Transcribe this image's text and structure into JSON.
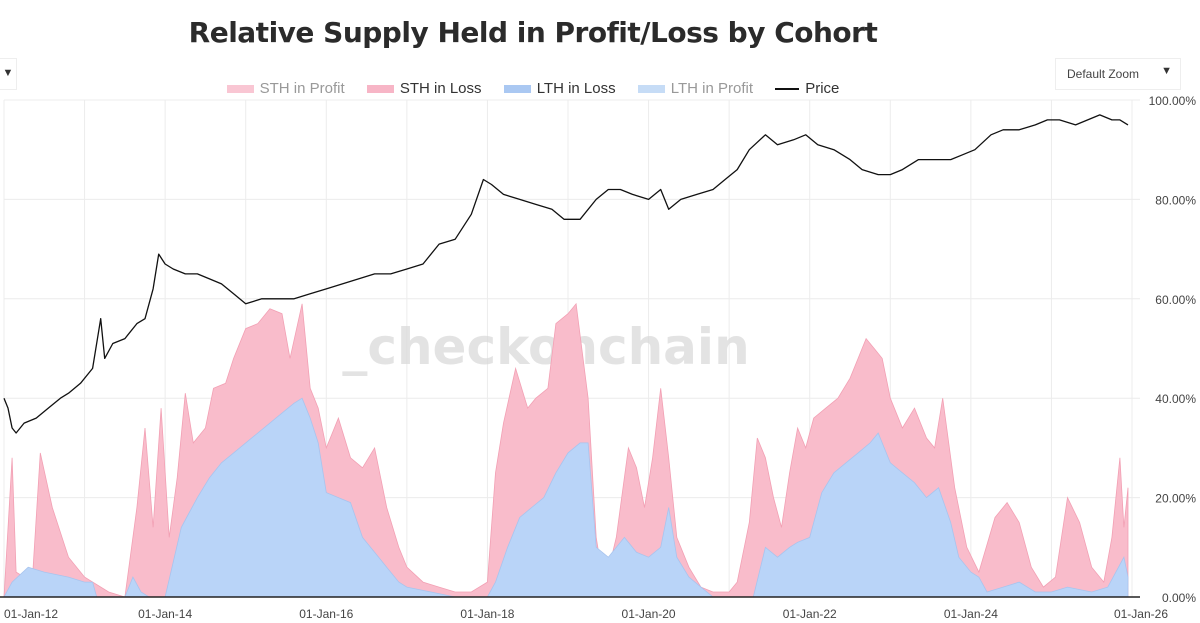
{
  "title": "Relative Supply Held in Profit/Loss by Cohort",
  "controls": {
    "left_dropdown_icon": "▼",
    "zoom_label": "Default Zoom",
    "zoom_icon": "▼"
  },
  "watermark": "_checkonchain",
  "legend": [
    {
      "label": "STH in Profit",
      "color": "#f9c6d3",
      "text_color": "#999999"
    },
    {
      "label": "STH in Loss",
      "color": "#f7b5c6",
      "text_color": "#333333"
    },
    {
      "label": "LTH in Loss",
      "color": "#aac8f2",
      "text_color": "#333333"
    },
    {
      "label": "LTH in Profit",
      "color": "#c6dcf6",
      "text_color": "#999999"
    },
    {
      "label": "Price",
      "color": "#111111",
      "text_color": "#333333"
    }
  ],
  "colors": {
    "sth_loss": "#f9bccb",
    "sth_loss_edge": "#f2a0b4",
    "lth_loss": "#b9d4f8",
    "lth_loss_edge": "#a8c4ee",
    "price": "#111111",
    "grid": "#ececec",
    "axis": "#222222"
  },
  "chart_data": {
    "type": "area",
    "title": "Relative Supply Held in Profit/Loss by Cohort",
    "ylim": [
      0,
      100
    ],
    "y_unit": "%",
    "y_ticks": [
      "0.00%",
      "20.00%",
      "40.00%",
      "60.00%",
      "80.00%",
      "100.00%"
    ],
    "x_ticks": [
      "01-Jan-12",
      "01-Jan-14",
      "01-Jan-16",
      "01-Jan-18",
      "01-Jan-20",
      "01-Jan-22",
      "01-Jan-24",
      "01-Jan-26"
    ],
    "xlim": [
      2012.0,
      2026.0
    ],
    "grid": true,
    "legend_position": "top",
    "series": [
      {
        "name": "STH in Loss",
        "kind": "area",
        "stack": "total",
        "points": [
          [
            2012.0,
            0
          ],
          [
            2012.1,
            28
          ],
          [
            2012.15,
            5
          ],
          [
            2012.35,
            3
          ],
          [
            2012.45,
            29
          ],
          [
            2012.6,
            18
          ],
          [
            2012.8,
            8
          ],
          [
            2013.0,
            4
          ],
          [
            2013.3,
            1
          ],
          [
            2013.5,
            0
          ],
          [
            2013.65,
            18
          ],
          [
            2013.75,
            34
          ],
          [
            2013.85,
            14
          ],
          [
            2013.95,
            38
          ],
          [
            2014.05,
            12
          ],
          [
            2014.15,
            24
          ],
          [
            2014.25,
            41
          ],
          [
            2014.35,
            31
          ],
          [
            2014.5,
            34
          ],
          [
            2014.6,
            42
          ],
          [
            2014.75,
            43
          ],
          [
            2014.85,
            48
          ],
          [
            2015.0,
            54
          ],
          [
            2015.15,
            55
          ],
          [
            2015.3,
            58
          ],
          [
            2015.45,
            57
          ],
          [
            2015.55,
            48
          ],
          [
            2015.7,
            59
          ],
          [
            2015.8,
            42
          ],
          [
            2015.9,
            38
          ],
          [
            2016.0,
            30
          ],
          [
            2016.15,
            36
          ],
          [
            2016.3,
            28
          ],
          [
            2016.45,
            26
          ],
          [
            2016.6,
            30
          ],
          [
            2016.75,
            18
          ],
          [
            2016.9,
            10
          ],
          [
            2017.0,
            6
          ],
          [
            2017.2,
            3
          ],
          [
            2017.4,
            2
          ],
          [
            2017.6,
            1
          ],
          [
            2017.8,
            1
          ],
          [
            2018.0,
            3
          ],
          [
            2018.1,
            25
          ],
          [
            2018.2,
            35
          ],
          [
            2018.35,
            46
          ],
          [
            2018.5,
            38
          ],
          [
            2018.6,
            40
          ],
          [
            2018.75,
            42
          ],
          [
            2018.85,
            55
          ],
          [
            2019.0,
            57
          ],
          [
            2019.1,
            59
          ],
          [
            2019.25,
            40
          ],
          [
            2019.35,
            12
          ],
          [
            2019.45,
            2
          ],
          [
            2019.6,
            12
          ],
          [
            2019.75,
            30
          ],
          [
            2019.85,
            26
          ],
          [
            2019.95,
            18
          ],
          [
            2020.05,
            28
          ],
          [
            2020.15,
            42
          ],
          [
            2020.25,
            28
          ],
          [
            2020.35,
            12
          ],
          [
            2020.5,
            6
          ],
          [
            2020.65,
            2
          ],
          [
            2020.8,
            1
          ],
          [
            2021.0,
            1
          ],
          [
            2021.1,
            3
          ],
          [
            2021.25,
            15
          ],
          [
            2021.35,
            32
          ],
          [
            2021.45,
            28
          ],
          [
            2021.55,
            20
          ],
          [
            2021.65,
            14
          ],
          [
            2021.75,
            25
          ],
          [
            2021.85,
            34
          ],
          [
            2021.95,
            30
          ],
          [
            2022.05,
            36
          ],
          [
            2022.2,
            38
          ],
          [
            2022.35,
            40
          ],
          [
            2022.5,
            44
          ],
          [
            2022.6,
            48
          ],
          [
            2022.7,
            52
          ],
          [
            2022.8,
            50
          ],
          [
            2022.9,
            48
          ],
          [
            2023.0,
            40
          ],
          [
            2023.15,
            34
          ],
          [
            2023.3,
            38
          ],
          [
            2023.45,
            32
          ],
          [
            2023.55,
            30
          ],
          [
            2023.65,
            40
          ],
          [
            2023.8,
            22
          ],
          [
            2023.95,
            10
          ],
          [
            2024.1,
            5
          ],
          [
            2024.3,
            16
          ],
          [
            2024.45,
            19
          ],
          [
            2024.6,
            15
          ],
          [
            2024.75,
            6
          ],
          [
            2024.9,
            2
          ],
          [
            2025.05,
            4
          ],
          [
            2025.2,
            20
          ],
          [
            2025.35,
            15
          ],
          [
            2025.5,
            6
          ],
          [
            2025.65,
            3
          ],
          [
            2025.75,
            12
          ],
          [
            2025.85,
            28
          ],
          [
            2025.9,
            14
          ],
          [
            2025.95,
            22
          ]
        ]
      },
      {
        "name": "LTH in Loss",
        "kind": "area",
        "stack": "base",
        "points": [
          [
            2012.0,
            0
          ],
          [
            2012.1,
            3
          ],
          [
            2012.3,
            6
          ],
          [
            2012.5,
            5
          ],
          [
            2012.8,
            4
          ],
          [
            2013.0,
            3
          ],
          [
            2013.1,
            3
          ],
          [
            2013.15,
            0
          ],
          [
            2013.3,
            0
          ],
          [
            2013.5,
            0
          ],
          [
            2013.6,
            4
          ],
          [
            2013.7,
            1
          ],
          [
            2013.8,
            0
          ],
          [
            2014.0,
            0
          ],
          [
            2014.2,
            14
          ],
          [
            2014.3,
            17
          ],
          [
            2014.4,
            20
          ],
          [
            2014.55,
            24
          ],
          [
            2014.7,
            27
          ],
          [
            2014.85,
            29
          ],
          [
            2015.0,
            31
          ],
          [
            2015.15,
            33
          ],
          [
            2015.3,
            35
          ],
          [
            2015.45,
            37
          ],
          [
            2015.6,
            39
          ],
          [
            2015.7,
            40
          ],
          [
            2015.8,
            36
          ],
          [
            2015.9,
            31
          ],
          [
            2016.0,
            21
          ],
          [
            2016.15,
            20
          ],
          [
            2016.3,
            19
          ],
          [
            2016.45,
            12
          ],
          [
            2016.6,
            9
          ],
          [
            2016.75,
            6
          ],
          [
            2016.9,
            3
          ],
          [
            2017.0,
            2
          ],
          [
            2017.3,
            1
          ],
          [
            2017.6,
            0
          ],
          [
            2018.0,
            0
          ],
          [
            2018.1,
            3
          ],
          [
            2018.25,
            10
          ],
          [
            2018.4,
            16
          ],
          [
            2018.55,
            18
          ],
          [
            2018.7,
            20
          ],
          [
            2018.85,
            25
          ],
          [
            2019.0,
            29
          ],
          [
            2019.15,
            31
          ],
          [
            2019.25,
            31
          ],
          [
            2019.35,
            10
          ],
          [
            2019.5,
            8
          ],
          [
            2019.7,
            12
          ],
          [
            2019.85,
            9
          ],
          [
            2020.0,
            8
          ],
          [
            2020.15,
            10
          ],
          [
            2020.25,
            18
          ],
          [
            2020.35,
            8
          ],
          [
            2020.5,
            4
          ],
          [
            2020.65,
            2
          ],
          [
            2020.8,
            0
          ],
          [
            2021.0,
            0
          ],
          [
            2021.3,
            0
          ],
          [
            2021.45,
            10
          ],
          [
            2021.6,
            8
          ],
          [
            2021.75,
            10
          ],
          [
            2021.85,
            11
          ],
          [
            2022.0,
            12
          ],
          [
            2022.15,
            21
          ],
          [
            2022.3,
            25
          ],
          [
            2022.45,
            27
          ],
          [
            2022.6,
            29
          ],
          [
            2022.75,
            31
          ],
          [
            2022.85,
            33
          ],
          [
            2023.0,
            27
          ],
          [
            2023.15,
            25
          ],
          [
            2023.3,
            23
          ],
          [
            2023.45,
            20
          ],
          [
            2023.6,
            22
          ],
          [
            2023.75,
            15
          ],
          [
            2023.85,
            8
          ],
          [
            2024.0,
            5
          ],
          [
            2024.1,
            4
          ],
          [
            2024.2,
            1
          ],
          [
            2024.4,
            2
          ],
          [
            2024.6,
            3
          ],
          [
            2024.8,
            1
          ],
          [
            2025.0,
            1
          ],
          [
            2025.2,
            2
          ],
          [
            2025.5,
            1
          ],
          [
            2025.7,
            2
          ],
          [
            2025.9,
            8
          ],
          [
            2025.95,
            4
          ]
        ]
      },
      {
        "name": "Price",
        "kind": "line",
        "scale": "log",
        "points": [
          [
            2012.0,
            40
          ],
          [
            2012.05,
            38
          ],
          [
            2012.1,
            34
          ],
          [
            2012.15,
            33
          ],
          [
            2012.25,
            35
          ],
          [
            2012.4,
            36
          ],
          [
            2012.55,
            38
          ],
          [
            2012.7,
            40
          ],
          [
            2012.8,
            41
          ],
          [
            2012.95,
            43
          ],
          [
            2013.1,
            46
          ],
          [
            2013.2,
            56
          ],
          [
            2013.25,
            48
          ],
          [
            2013.35,
            51
          ],
          [
            2013.5,
            52
          ],
          [
            2013.65,
            55
          ],
          [
            2013.75,
            56
          ],
          [
            2013.85,
            62
          ],
          [
            2013.92,
            69
          ],
          [
            2014.0,
            67
          ],
          [
            2014.1,
            66
          ],
          [
            2014.25,
            65
          ],
          [
            2014.4,
            65
          ],
          [
            2014.55,
            64
          ],
          [
            2014.7,
            63
          ],
          [
            2014.85,
            61
          ],
          [
            2015.0,
            59
          ],
          [
            2015.2,
            60
          ],
          [
            2015.4,
            60
          ],
          [
            2015.6,
            60
          ],
          [
            2015.8,
            61
          ],
          [
            2016.0,
            62
          ],
          [
            2016.2,
            63
          ],
          [
            2016.4,
            64
          ],
          [
            2016.6,
            65
          ],
          [
            2016.8,
            65
          ],
          [
            2017.0,
            66
          ],
          [
            2017.2,
            67
          ],
          [
            2017.4,
            71
          ],
          [
            2017.6,
            72
          ],
          [
            2017.8,
            77
          ],
          [
            2017.95,
            84
          ],
          [
            2018.05,
            83
          ],
          [
            2018.2,
            81
          ],
          [
            2018.4,
            80
          ],
          [
            2018.6,
            79
          ],
          [
            2018.8,
            78
          ],
          [
            2018.95,
            76
          ],
          [
            2019.15,
            76
          ],
          [
            2019.35,
            80
          ],
          [
            2019.5,
            82
          ],
          [
            2019.65,
            82
          ],
          [
            2019.8,
            81
          ],
          [
            2020.0,
            80
          ],
          [
            2020.15,
            82
          ],
          [
            2020.25,
            78
          ],
          [
            2020.4,
            80
          ],
          [
            2020.6,
            81
          ],
          [
            2020.8,
            82
          ],
          [
            2020.95,
            84
          ],
          [
            2021.1,
            86
          ],
          [
            2021.25,
            90
          ],
          [
            2021.45,
            93
          ],
          [
            2021.6,
            91
          ],
          [
            2021.8,
            92
          ],
          [
            2021.95,
            93
          ],
          [
            2022.1,
            91
          ],
          [
            2022.3,
            90
          ],
          [
            2022.5,
            88
          ],
          [
            2022.65,
            86
          ],
          [
            2022.85,
            85
          ],
          [
            2023.0,
            85
          ],
          [
            2023.15,
            86
          ],
          [
            2023.35,
            88
          ],
          [
            2023.55,
            88
          ],
          [
            2023.75,
            88
          ],
          [
            2023.9,
            89
          ],
          [
            2024.05,
            90
          ],
          [
            2024.25,
            93
          ],
          [
            2024.4,
            94
          ],
          [
            2024.6,
            94
          ],
          [
            2024.8,
            95
          ],
          [
            2024.95,
            96
          ],
          [
            2025.1,
            96
          ],
          [
            2025.3,
            95
          ],
          [
            2025.45,
            96
          ],
          [
            2025.6,
            97
          ],
          [
            2025.75,
            96
          ],
          [
            2025.85,
            96
          ],
          [
            2025.95,
            95
          ]
        ]
      }
    ]
  }
}
